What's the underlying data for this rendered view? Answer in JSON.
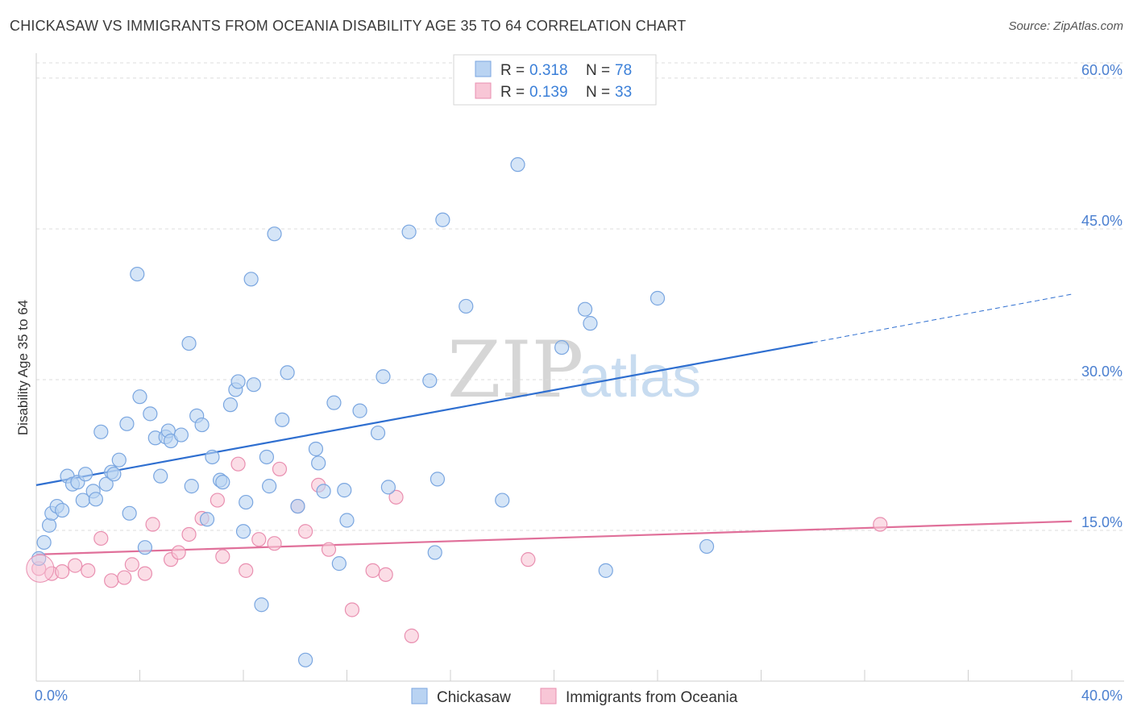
{
  "title": "CHICKASAW VS IMMIGRANTS FROM OCEANIA DISABILITY AGE 35 TO 64 CORRELATION CHART",
  "source": "Source: ZipAtlas.com",
  "watermark": {
    "zip": "ZIP",
    "atlas": "atlas"
  },
  "legend_top": [
    {
      "r_label": "R = ",
      "r_value": "0.318",
      "n_label": "N = ",
      "n_value": "78"
    },
    {
      "r_label": "R = ",
      "r_value": "0.139",
      "n_label": "N = ",
      "n_value": "33"
    }
  ],
  "legend_bottom": [
    "Chickasaw",
    "Immigrants from Oceania"
  ],
  "colors": {
    "blue_fill": "#b9d3f2",
    "blue_stroke": "#7aa6e0",
    "blue_line": "#2f6fd0",
    "pink_fill": "#f8c6d6",
    "pink_stroke": "#e98fb0",
    "pink_line": "#e0709a",
    "grid": "#dcdcdc",
    "tick_label": "#4a7fd0"
  },
  "chart_data": {
    "type": "scatter",
    "title": "CHICKASAW VS IMMIGRANTS FROM OCEANIA DISABILITY AGE 35 TO 64 CORRELATION CHART",
    "xlabel": "",
    "ylabel": "Disability Age 35 to 64",
    "xlim": [
      0,
      40
    ],
    "ylim": [
      0,
      62
    ],
    "x_tick_labels": [
      "0.0%",
      "40.0%"
    ],
    "y_ticks": [
      15,
      30,
      45,
      60
    ],
    "y_tick_labels": [
      "15.0%",
      "30.0%",
      "45.0%",
      "60.0%"
    ],
    "grid": "horizontal dashed",
    "legend_placement": "top-center",
    "series": [
      {
        "name": "Chickasaw",
        "color": "#7aa6e0",
        "trend": {
          "x": [
            0,
            30
          ],
          "y": [
            19.5,
            33.7
          ],
          "dashed_extension_to": [
            40,
            38.5
          ]
        },
        "points": [
          [
            0.3,
            13.8
          ],
          [
            0.5,
            15.5
          ],
          [
            0.6,
            16.7
          ],
          [
            0.8,
            17.4
          ],
          [
            1.0,
            17.0
          ],
          [
            1.2,
            20.4
          ],
          [
            1.4,
            19.6
          ],
          [
            1.6,
            19.8
          ],
          [
            1.8,
            18.0
          ],
          [
            1.9,
            20.6
          ],
          [
            2.2,
            18.9
          ],
          [
            2.3,
            18.1
          ],
          [
            2.5,
            24.8
          ],
          [
            2.7,
            19.6
          ],
          [
            2.9,
            20.8
          ],
          [
            3.0,
            20.6
          ],
          [
            3.2,
            22.0
          ],
          [
            3.5,
            25.6
          ],
          [
            3.6,
            16.7
          ],
          [
            3.9,
            40.5
          ],
          [
            4.0,
            28.3
          ],
          [
            4.2,
            13.3
          ],
          [
            4.4,
            26.6
          ],
          [
            4.6,
            24.2
          ],
          [
            4.8,
            20.4
          ],
          [
            5.0,
            24.3
          ],
          [
            5.1,
            24.9
          ],
          [
            5.2,
            23.9
          ],
          [
            5.6,
            24.5
          ],
          [
            5.9,
            33.6
          ],
          [
            6.0,
            19.4
          ],
          [
            6.2,
            26.4
          ],
          [
            6.4,
            25.5
          ],
          [
            6.6,
            16.1
          ],
          [
            6.8,
            22.3
          ],
          [
            7.1,
            20.0
          ],
          [
            7.2,
            19.8
          ],
          [
            7.5,
            27.5
          ],
          [
            7.7,
            29.0
          ],
          [
            7.8,
            29.8
          ],
          [
            8.0,
            14.9
          ],
          [
            8.1,
            17.8
          ],
          [
            8.3,
            40.0
          ],
          [
            8.4,
            29.5
          ],
          [
            8.7,
            7.6
          ],
          [
            8.9,
            22.3
          ],
          [
            9.0,
            19.4
          ],
          [
            9.2,
            44.5
          ],
          [
            9.5,
            26.0
          ],
          [
            9.7,
            30.7
          ],
          [
            10.1,
            17.4
          ],
          [
            10.4,
            2.1
          ],
          [
            10.8,
            23.1
          ],
          [
            10.9,
            21.7
          ],
          [
            11.1,
            18.9
          ],
          [
            11.5,
            27.7
          ],
          [
            11.7,
            11.7
          ],
          [
            11.9,
            19.0
          ],
          [
            12.0,
            16.0
          ],
          [
            12.5,
            26.9
          ],
          [
            13.2,
            24.7
          ],
          [
            13.4,
            30.3
          ],
          [
            13.6,
            19.3
          ],
          [
            14.4,
            44.7
          ],
          [
            15.2,
            29.9
          ],
          [
            15.4,
            12.8
          ],
          [
            15.5,
            20.1
          ],
          [
            15.7,
            45.9
          ],
          [
            16.6,
            37.3
          ],
          [
            18.0,
            18.0
          ],
          [
            18.6,
            51.4
          ],
          [
            20.3,
            33.2
          ],
          [
            21.2,
            37.0
          ],
          [
            21.4,
            35.6
          ],
          [
            22.0,
            11.0
          ],
          [
            24.0,
            38.1
          ],
          [
            25.9,
            13.4
          ],
          [
            0.1,
            12.2
          ]
        ]
      },
      {
        "name": "Immigrants from Oceania",
        "color": "#e98fb0",
        "trend": {
          "x": [
            0,
            40
          ],
          "y": [
            12.6,
            15.9
          ]
        },
        "points": [
          [
            0.1,
            11.2
          ],
          [
            0.6,
            10.7
          ],
          [
            1.0,
            10.9
          ],
          [
            1.5,
            11.5
          ],
          [
            2.0,
            11.0
          ],
          [
            2.5,
            14.2
          ],
          [
            2.9,
            10.0
          ],
          [
            3.4,
            10.3
          ],
          [
            3.7,
            11.6
          ],
          [
            4.2,
            10.7
          ],
          [
            4.5,
            15.6
          ],
          [
            5.2,
            12.1
          ],
          [
            5.5,
            12.8
          ],
          [
            5.9,
            14.6
          ],
          [
            6.4,
            16.2
          ],
          [
            7.0,
            18.0
          ],
          [
            7.2,
            12.4
          ],
          [
            7.8,
            21.6
          ],
          [
            8.1,
            11.0
          ],
          [
            8.6,
            14.1
          ],
          [
            9.2,
            13.7
          ],
          [
            9.4,
            21.1
          ],
          [
            10.1,
            17.4
          ],
          [
            10.4,
            14.9
          ],
          [
            10.9,
            19.5
          ],
          [
            11.3,
            13.1
          ],
          [
            12.2,
            7.1
          ],
          [
            13.0,
            11.0
          ],
          [
            13.5,
            10.6
          ],
          [
            13.9,
            18.3
          ],
          [
            14.5,
            4.5
          ],
          [
            19.0,
            12.1
          ],
          [
            32.6,
            15.6
          ]
        ]
      }
    ]
  }
}
